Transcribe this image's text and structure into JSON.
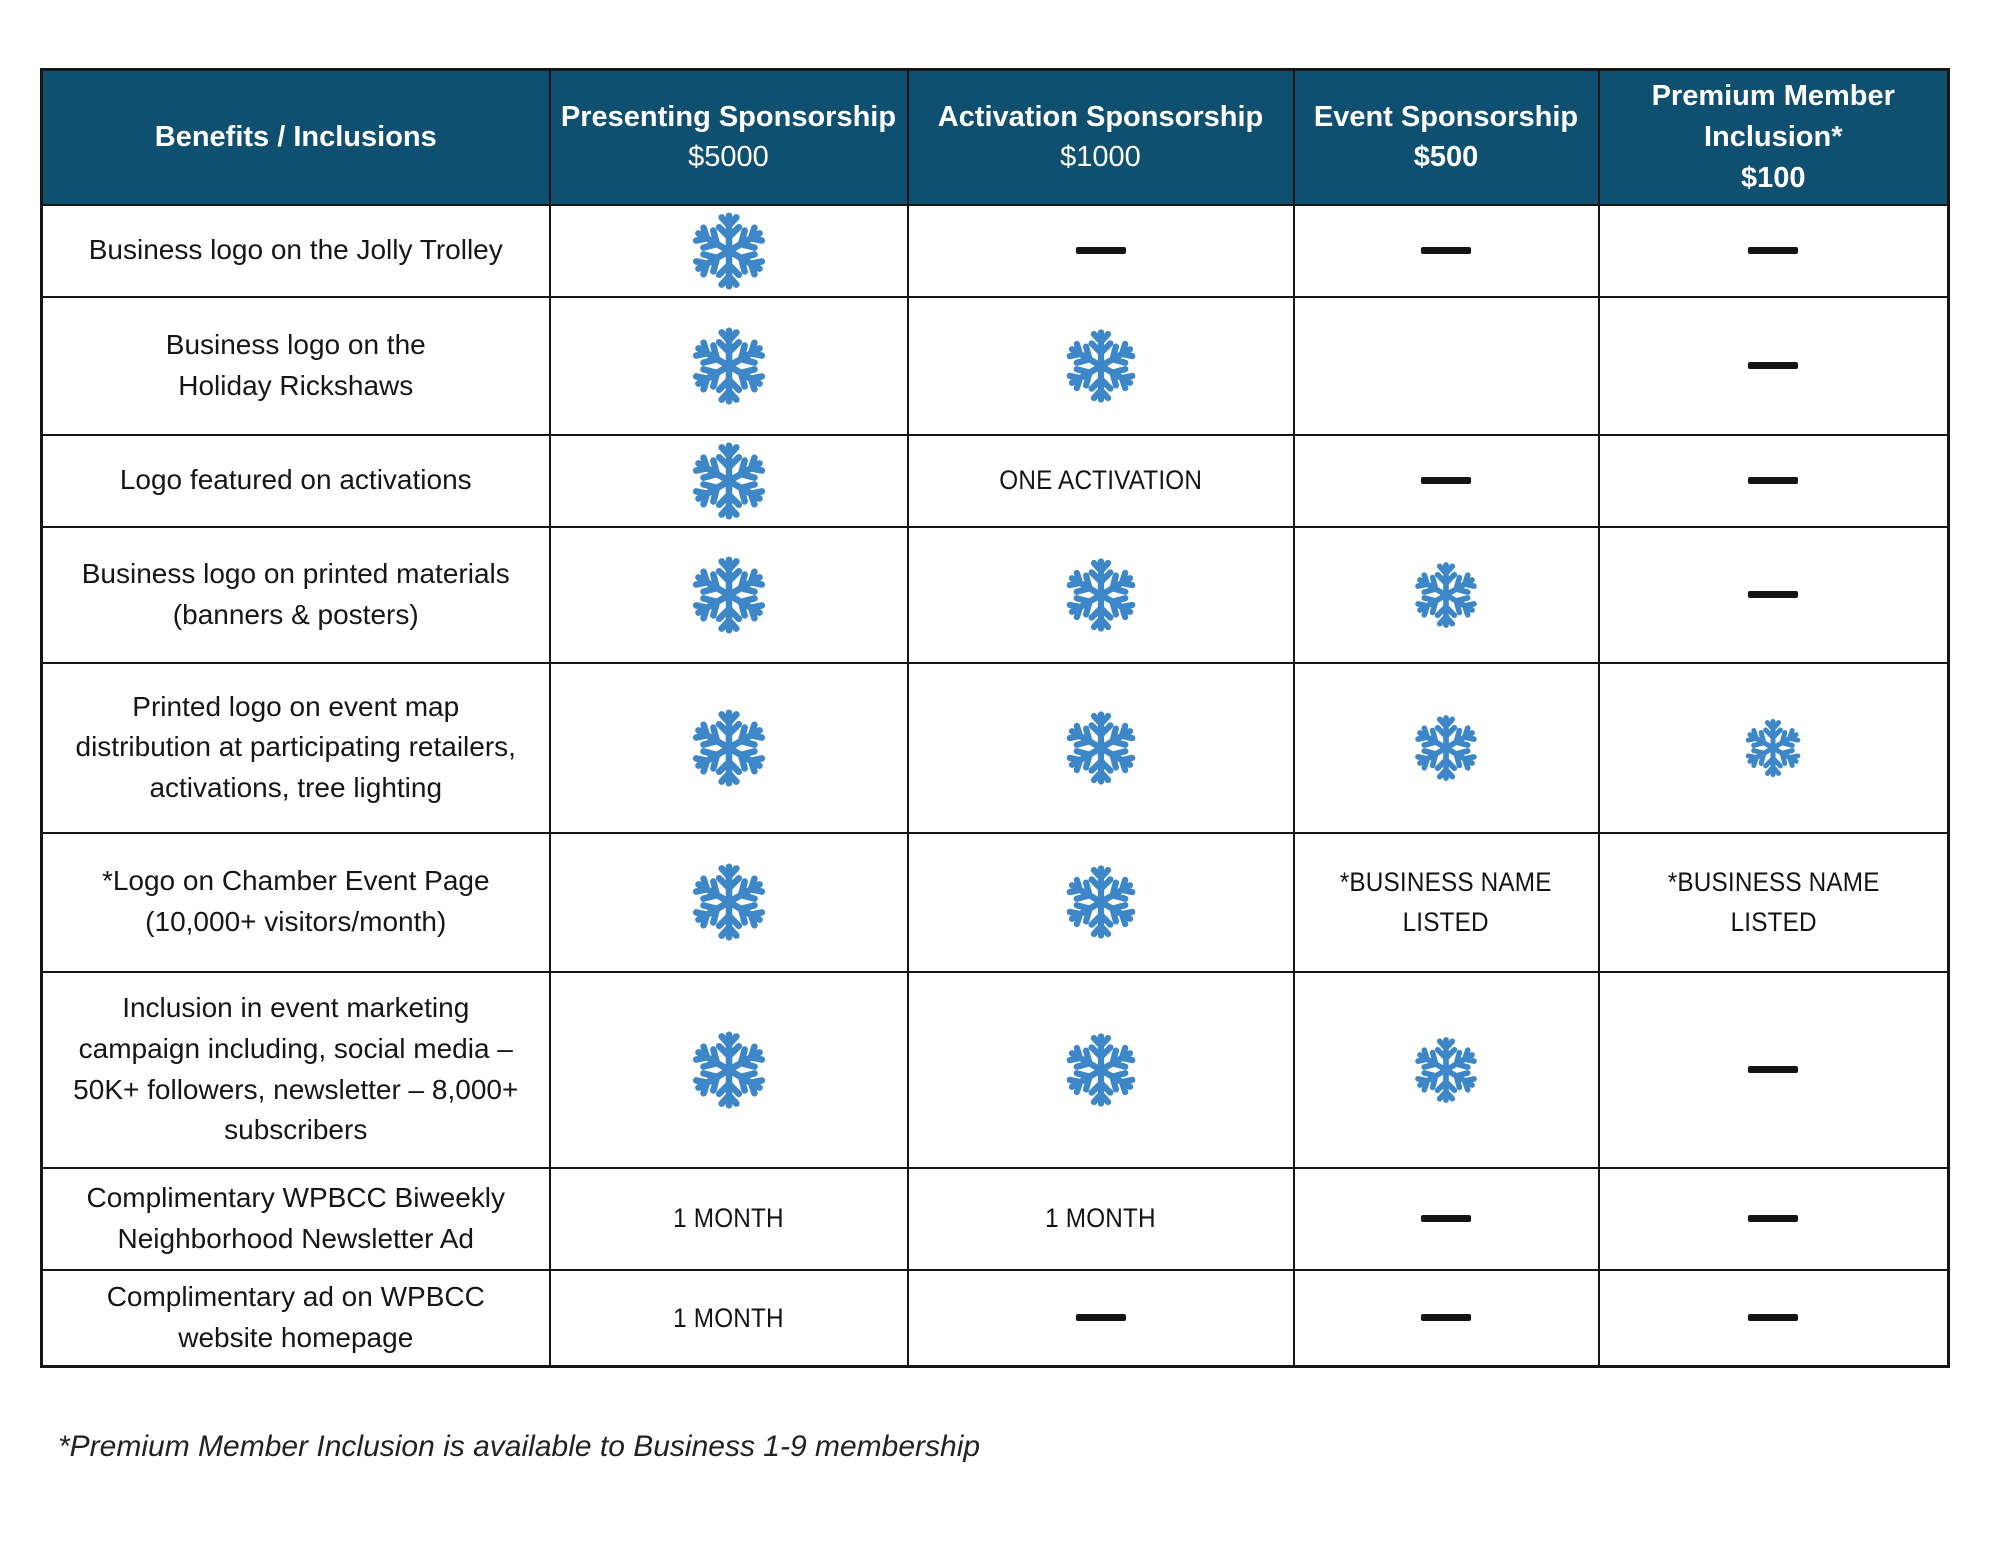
{
  "colors": {
    "header_bg": "#0f4f70",
    "header_text": "#ffffff",
    "snowflake_blue": "#3d87c9",
    "dash_black": "#141414",
    "border_black": "#161616"
  },
  "table": {
    "header": [
      {
        "title": "Benefits / Inclusions",
        "price": "",
        "price_bold": false
      },
      {
        "title": "Presenting Sponsorship",
        "price": "$5000",
        "price_bold": false
      },
      {
        "title": "Activation Sponsorship",
        "price": "$1000",
        "price_bold": false
      },
      {
        "title": "Event Sponsorship",
        "price": "$500",
        "price_bold": true
      },
      {
        "title": "Premium Member\nInclusion*",
        "price": "$100",
        "price_bold": true
      }
    ],
    "rows": [
      {
        "benefit": "Business logo on the Jolly Trolley",
        "cells": [
          {
            "type": "snowflake"
          },
          {
            "type": "dash"
          },
          {
            "type": "dash"
          },
          {
            "type": "dash"
          }
        ]
      },
      {
        "benefit": "Business logo on the\nHoliday Rickshaws",
        "cells": [
          {
            "type": "snowflake"
          },
          {
            "type": "snowflake"
          },
          {
            "type": "empty"
          },
          {
            "type": "dash"
          }
        ]
      },
      {
        "benefit": "Logo featured on activations",
        "cells": [
          {
            "type": "snowflake"
          },
          {
            "type": "text",
            "text": "ONE ACTIVATION"
          },
          {
            "type": "dash"
          },
          {
            "type": "dash"
          }
        ]
      },
      {
        "benefit": "Business logo on printed materials\n(banners & posters)",
        "cells": [
          {
            "type": "snowflake"
          },
          {
            "type": "snowflake"
          },
          {
            "type": "snowflake"
          },
          {
            "type": "dash"
          }
        ]
      },
      {
        "benefit": "Printed logo on event map\ndistribution at participating retailers,\nactivations, tree lighting",
        "cells": [
          {
            "type": "snowflake"
          },
          {
            "type": "snowflake"
          },
          {
            "type": "snowflake"
          },
          {
            "type": "snowflake"
          }
        ]
      },
      {
        "benefit": "*Logo on Chamber Event Page\n(10,000+ visitors/month)",
        "cells": [
          {
            "type": "snowflake"
          },
          {
            "type": "snowflake"
          },
          {
            "type": "text",
            "text": "*BUSINESS NAME\nLISTED"
          },
          {
            "type": "text",
            "text": "*BUSINESS NAME\nLISTED"
          }
        ]
      },
      {
        "benefit": "Inclusion in event marketing\ncampaign including, social media –\n50K+ followers, newsletter – 8,000+\nsubscribers",
        "cells": [
          {
            "type": "snowflake"
          },
          {
            "type": "snowflake"
          },
          {
            "type": "snowflake"
          },
          {
            "type": "dash"
          }
        ]
      },
      {
        "benefit": "Complimentary WPBCC Biweekly\nNeighborhood Newsletter Ad",
        "cells": [
          {
            "type": "text",
            "text": "1 MONTH"
          },
          {
            "type": "text",
            "text": "1 MONTH"
          },
          {
            "type": "dash"
          },
          {
            "type": "dash"
          }
        ]
      },
      {
        "benefit": "Complimentary ad on WPBCC\nwebsite homepage",
        "cells": [
          {
            "type": "text",
            "text": "1 MONTH"
          },
          {
            "type": "dash"
          },
          {
            "type": "dash"
          },
          {
            "type": "dash"
          }
        ]
      }
    ]
  },
  "footnote": "*Premium Member Inclusion is available to Business 1-9 membership"
}
